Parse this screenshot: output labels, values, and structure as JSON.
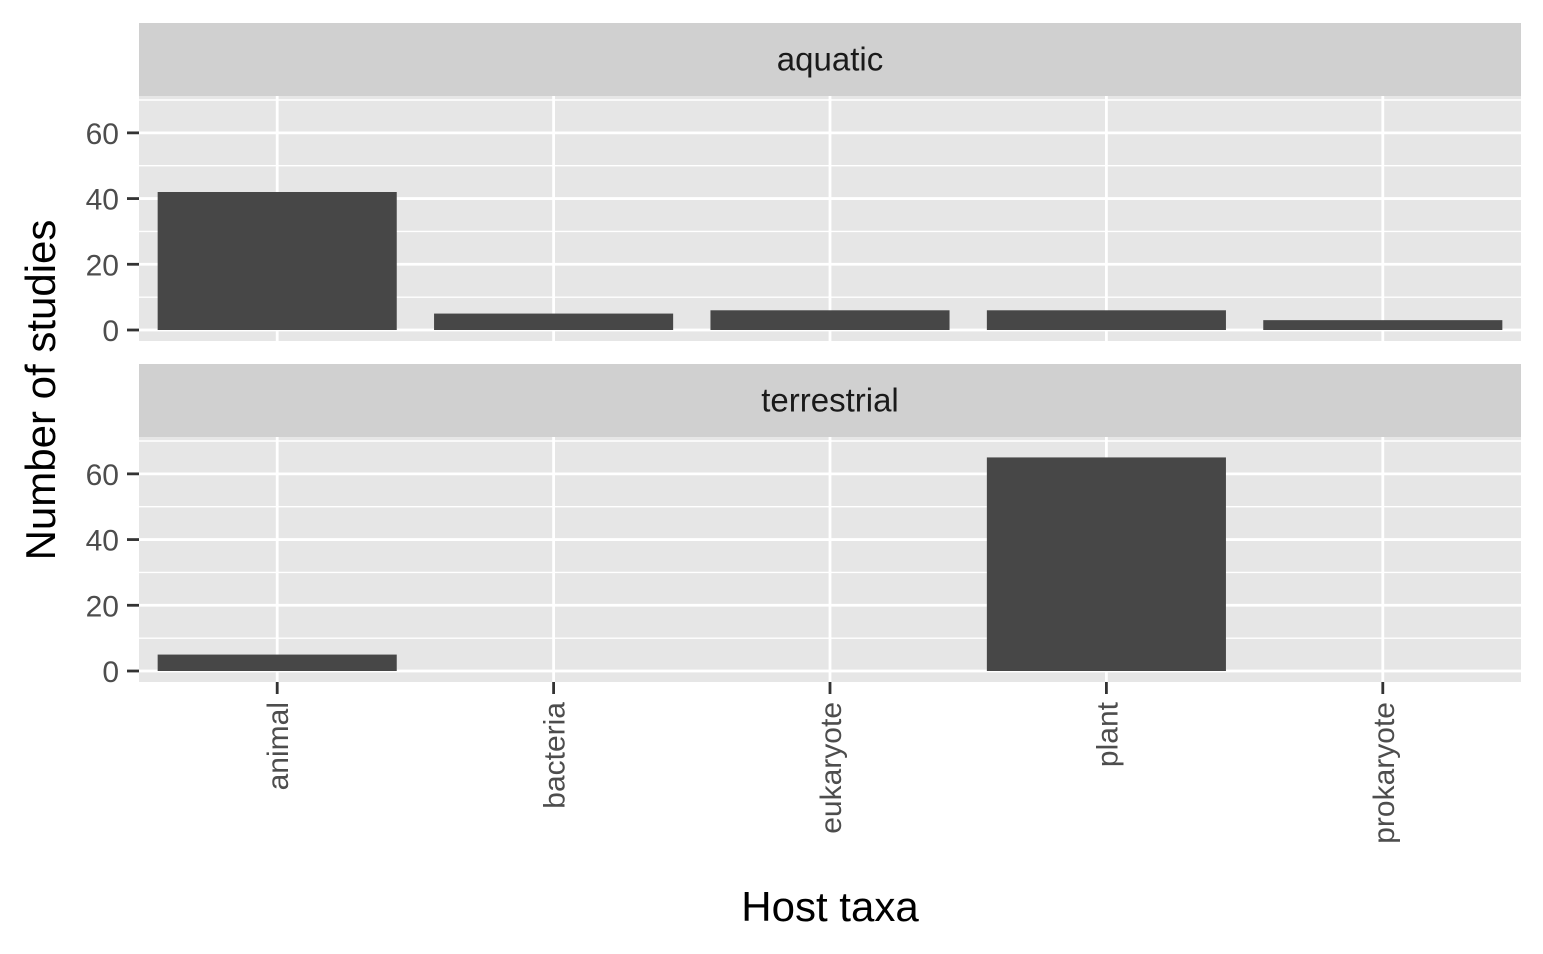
{
  "chart_data": {
    "type": "bar",
    "xlabel": "Host taxa",
    "ylabel": "Number of studies",
    "categories": [
      "animal",
      "bacteria",
      "eukaryote",
      "plant",
      "prokaryote"
    ],
    "ylim": [
      0,
      70
    ],
    "y_ticks": [
      0,
      20,
      40,
      60
    ],
    "facet_layout": "vertical",
    "grid": true,
    "bar_color": "#474747",
    "panel_background": "#e6e6e6",
    "strip_background": "#d0d0d0",
    "facets": [
      {
        "label": "aquatic",
        "values": [
          42,
          5,
          6,
          6,
          3
        ]
      },
      {
        "label": "terrestrial",
        "values": [
          5,
          0,
          0,
          65,
          0
        ]
      }
    ]
  }
}
